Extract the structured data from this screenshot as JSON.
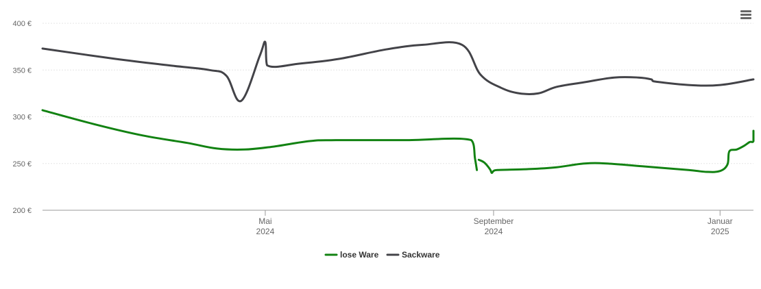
{
  "menu": {
    "icon": "hamburger-menu-icon"
  },
  "chart_data": {
    "type": "line",
    "title": "",
    "xlabel": "",
    "ylabel": "",
    "ylim": [
      200,
      400
    ],
    "yticks": [
      {
        "value": 200,
        "label": "200 €"
      },
      {
        "value": 250,
        "label": "250 €"
      },
      {
        "value": 300,
        "label": "300 €"
      },
      {
        "value": 350,
        "label": "350 €"
      },
      {
        "value": 400,
        "label": "400 €"
      }
    ],
    "xlim": [
      "2024-01-02",
      "2025-01-19"
    ],
    "xticks": [
      {
        "date": "2024-05-01",
        "month": "Mai",
        "year": "2024"
      },
      {
        "date": "2024-09-01",
        "month": "September",
        "year": "2024"
      },
      {
        "date": "2025-01-01",
        "month": "Januar",
        "year": "2025"
      }
    ],
    "grid": true,
    "legend_position": "bottom-center",
    "series": [
      {
        "name": "lose Ware",
        "color": "#128212",
        "segments": [
          [
            [
              "2024-01-02",
              307
            ],
            [
              "2024-01-30",
              292
            ],
            [
              "2024-02-25",
              280
            ],
            [
              "2024-03-20",
              272
            ],
            [
              "2024-04-05",
              266
            ],
            [
              "2024-04-20",
              265
            ],
            [
              "2024-05-05",
              268
            ],
            [
              "2024-05-25",
              274
            ],
            [
              "2024-06-08",
              275
            ],
            [
              "2024-07-15",
              275
            ],
            [
              "2024-08-20",
              275
            ],
            [
              "2024-08-22",
              255
            ],
            [
              "2024-08-23",
              243
            ]
          ],
          [
            [
              "2024-08-24",
              254
            ],
            [
              "2024-08-27",
              251
            ],
            [
              "2024-08-30",
              244
            ],
            [
              "2024-08-31",
              240
            ],
            [
              "2024-09-01",
              242
            ],
            [
              "2024-09-03",
              243
            ],
            [
              "2024-09-20",
              244
            ],
            [
              "2024-10-05",
              246
            ],
            [
              "2024-10-20",
              250
            ],
            [
              "2024-11-01",
              250
            ],
            [
              "2024-11-20",
              247
            ],
            [
              "2024-12-15",
              243
            ],
            [
              "2024-12-25",
              241
            ],
            [
              "2025-01-01",
              242
            ],
            [
              "2025-01-05",
              249
            ],
            [
              "2025-01-06",
              263
            ],
            [
              "2025-01-10",
              265
            ],
            [
              "2025-01-14",
              269
            ],
            [
              "2025-01-17",
              273
            ],
            [
              "2025-01-19",
              274
            ],
            [
              "2025-01-19",
              285
            ]
          ]
        ]
      },
      {
        "name": "Sackware",
        "color": "#434348",
        "segments": [
          [
            [
              "2024-01-02",
              373
            ],
            [
              "2024-02-10",
              362
            ],
            [
              "2024-03-10",
              355
            ],
            [
              "2024-04-01",
              350
            ],
            [
              "2024-04-10",
              344
            ],
            [
              "2024-04-18",
              317
            ],
            [
              "2024-04-28",
              365
            ],
            [
              "2024-05-01",
              380
            ],
            [
              "2024-05-02",
              355
            ],
            [
              "2024-05-20",
              357
            ],
            [
              "2024-06-10",
              362
            ],
            [
              "2024-07-05",
              372
            ],
            [
              "2024-07-25",
              377
            ],
            [
              "2024-08-15",
              377
            ],
            [
              "2024-08-25",
              345
            ],
            [
              "2024-09-05",
              331
            ],
            [
              "2024-09-15",
              325
            ],
            [
              "2024-09-25",
              325
            ],
            [
              "2024-10-05",
              332
            ],
            [
              "2024-10-20",
              337
            ],
            [
              "2024-11-05",
              342
            ],
            [
              "2024-11-18",
              342
            ],
            [
              "2024-11-25",
              340
            ],
            [
              "2024-11-26",
              338
            ],
            [
              "2024-12-15",
              334
            ],
            [
              "2025-01-01",
              334
            ],
            [
              "2025-01-19",
              340
            ]
          ]
        ]
      }
    ]
  }
}
